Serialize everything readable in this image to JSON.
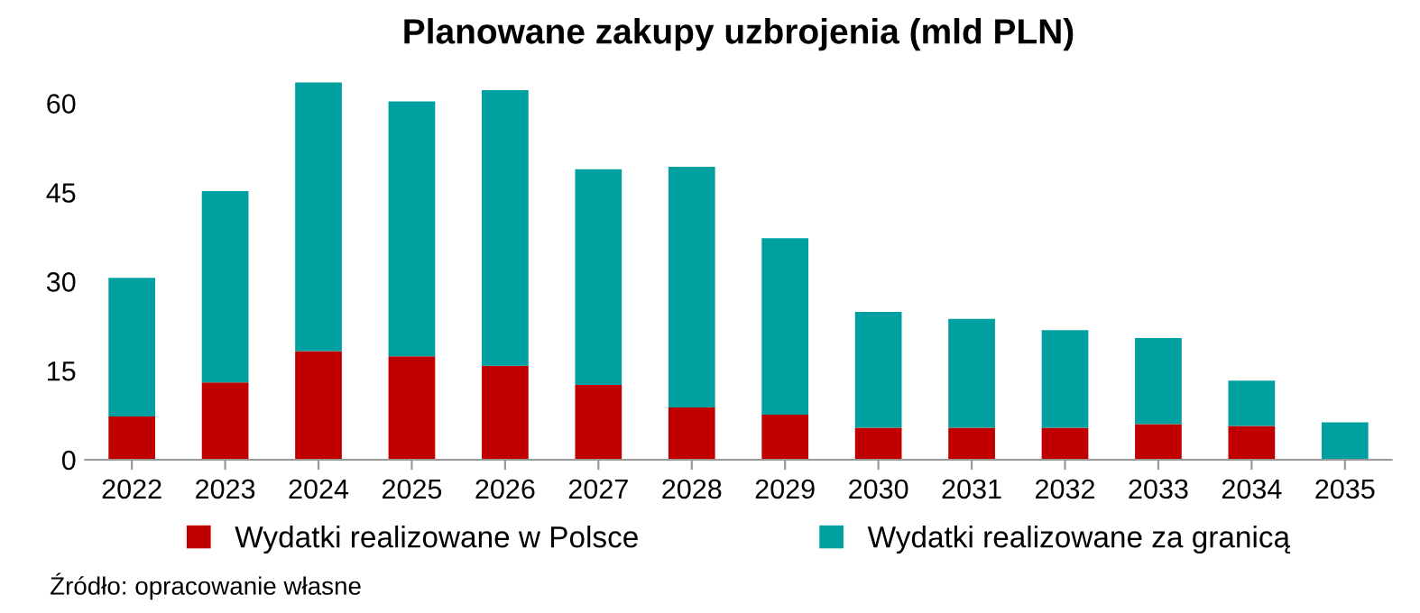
{
  "chart_data": {
    "type": "bar",
    "title": "Planowane zakupy uzbrojenia (mld PLN)",
    "stacked": true,
    "categories": [
      "2022",
      "2023",
      "2024",
      "2025",
      "2026",
      "2027",
      "2028",
      "2029",
      "2030",
      "2031",
      "2032",
      "2033",
      "2034",
      "2035"
    ],
    "series": [
      {
        "name": "Wydatki realizowane w Polsce",
        "color": "#c00000",
        "values": [
          7.3,
          13,
          18.3,
          17.4,
          15.8,
          12.6,
          8.8,
          7.6,
          5.4,
          5.4,
          5.4,
          6,
          5.7,
          0
        ]
      },
      {
        "name": "Wydatki realizowane za granicą",
        "color": "#00a0a0",
        "values": [
          23.3,
          32.2,
          45.2,
          42.9,
          46.4,
          36.3,
          40.5,
          29.7,
          19.5,
          18.3,
          16.4,
          14.5,
          7.6,
          6.3
        ]
      }
    ],
    "ylim": [
      0,
      65
    ],
    "yticks": [
      0,
      15,
      30,
      45,
      60
    ],
    "grid": false,
    "legend": "bottom",
    "annotations": [
      "Źródło: opracowanie własne"
    ]
  }
}
